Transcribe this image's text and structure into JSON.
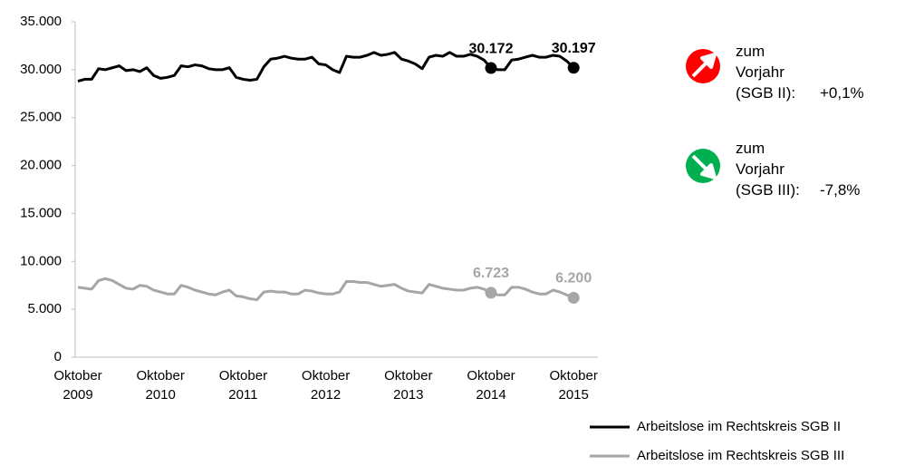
{
  "chart_data": {
    "type": "line",
    "categories": [
      "Oktober 2009",
      null,
      null,
      null,
      null,
      null,
      null,
      null,
      null,
      null,
      null,
      null,
      "Oktober 2010",
      null,
      null,
      null,
      null,
      null,
      null,
      null,
      null,
      null,
      null,
      null,
      "Oktober 2011",
      null,
      null,
      null,
      null,
      null,
      null,
      null,
      null,
      null,
      null,
      null,
      "Oktober 2012",
      null,
      null,
      null,
      null,
      null,
      null,
      null,
      null,
      null,
      null,
      null,
      "Oktober 2013",
      null,
      null,
      null,
      null,
      null,
      null,
      null,
      null,
      null,
      null,
      null,
      "Oktober 2014",
      null,
      null,
      null,
      null,
      null,
      null,
      null,
      null,
      null,
      null,
      null,
      "Oktober 2015"
    ],
    "series": [
      {
        "name": "Arbeitslose im Rechtskreis SGB II",
        "color": "#000000",
        "values": [
          28800,
          29000,
          29000,
          30100,
          30000,
          30200,
          30400,
          29900,
          30000,
          29800,
          30200,
          29400,
          29100,
          29200,
          29400,
          30400,
          30300,
          30500,
          30400,
          30100,
          30000,
          30000,
          30200,
          29200,
          29000,
          28900,
          29000,
          30300,
          31100,
          31200,
          31400,
          31200,
          31100,
          31100,
          31300,
          30600,
          30500,
          30000,
          29700,
          31400,
          31300,
          31300,
          31500,
          31800,
          31500,
          31600,
          31800,
          31100,
          30900,
          30600,
          30100,
          31300,
          31500,
          31400,
          31800,
          31400,
          31400,
          31600,
          31400,
          31000,
          30172,
          30000,
          30000,
          31000,
          31100,
          31300,
          31500,
          31300,
          31300,
          31500,
          31400,
          30900,
          30197
        ],
        "value_labels": [
          null,
          null,
          null,
          null,
          null,
          null,
          null,
          null,
          null,
          null,
          null,
          null,
          null,
          null,
          null,
          null,
          null,
          null,
          null,
          null,
          null,
          null,
          null,
          null,
          null,
          null,
          null,
          null,
          null,
          null,
          null,
          null,
          null,
          null,
          null,
          null,
          null,
          null,
          null,
          null,
          null,
          null,
          null,
          null,
          null,
          null,
          null,
          null,
          null,
          null,
          null,
          null,
          null,
          null,
          null,
          null,
          null,
          null,
          null,
          null,
          "30.172",
          null,
          null,
          null,
          null,
          null,
          null,
          null,
          null,
          null,
          null,
          null,
          "30.197"
        ]
      },
      {
        "name": "Arbeitslose im Rechtskreis SGB III",
        "color": "#a6a6a6",
        "values": [
          7300,
          7200,
          7100,
          8000,
          8200,
          8000,
          7600,
          7200,
          7100,
          7500,
          7400,
          7000,
          6800,
          6600,
          6600,
          7500,
          7300,
          7000,
          6800,
          6600,
          6500,
          6800,
          7000,
          6400,
          6300,
          6100,
          6000,
          6800,
          6900,
          6800,
          6800,
          6600,
          6600,
          7000,
          6900,
          6700,
          6600,
          6600,
          6800,
          7900,
          7900,
          7800,
          7800,
          7600,
          7400,
          7500,
          7600,
          7200,
          6900,
          6800,
          6700,
          7600,
          7400,
          7200,
          7100,
          7000,
          7000,
          7200,
          7300,
          7100,
          6723,
          6500,
          6500,
          7300,
          7300,
          7100,
          6800,
          6600,
          6600,
          7000,
          6800,
          6500,
          6200
        ],
        "value_labels": [
          null,
          null,
          null,
          null,
          null,
          null,
          null,
          null,
          null,
          null,
          null,
          null,
          null,
          null,
          null,
          null,
          null,
          null,
          null,
          null,
          null,
          null,
          null,
          null,
          null,
          null,
          null,
          null,
          null,
          null,
          null,
          null,
          null,
          null,
          null,
          null,
          null,
          null,
          null,
          null,
          null,
          null,
          null,
          null,
          null,
          null,
          null,
          null,
          null,
          null,
          null,
          null,
          null,
          null,
          null,
          null,
          null,
          null,
          null,
          null,
          "6.723",
          null,
          null,
          null,
          null,
          null,
          null,
          null,
          null,
          null,
          null,
          null,
          "6.200"
        ]
      }
    ],
    "ylim": [
      0,
      35000
    ],
    "yticks": [
      0,
      {
        "value": 5000,
        "label": "5.000"
      },
      {
        "value": 10000,
        "label": "10.000"
      },
      {
        "value": 15000,
        "label": "15.000"
      },
      {
        "value": 20000,
        "label": "20.000"
      },
      {
        "value": 25000,
        "label": "25.000"
      },
      {
        "value": 30000,
        "label": "30.000"
      },
      {
        "value": 35000,
        "label": "35.000"
      }
    ],
    "grid": false,
    "legend": "bottom-right",
    "annotations": [
      {
        "text": "zum Vorjahr (SGB II):",
        "change": "+0,1%"
      },
      {
        "text": "zum Vorjahr (SGB III):",
        "change": "-7,8%"
      }
    ]
  }
}
